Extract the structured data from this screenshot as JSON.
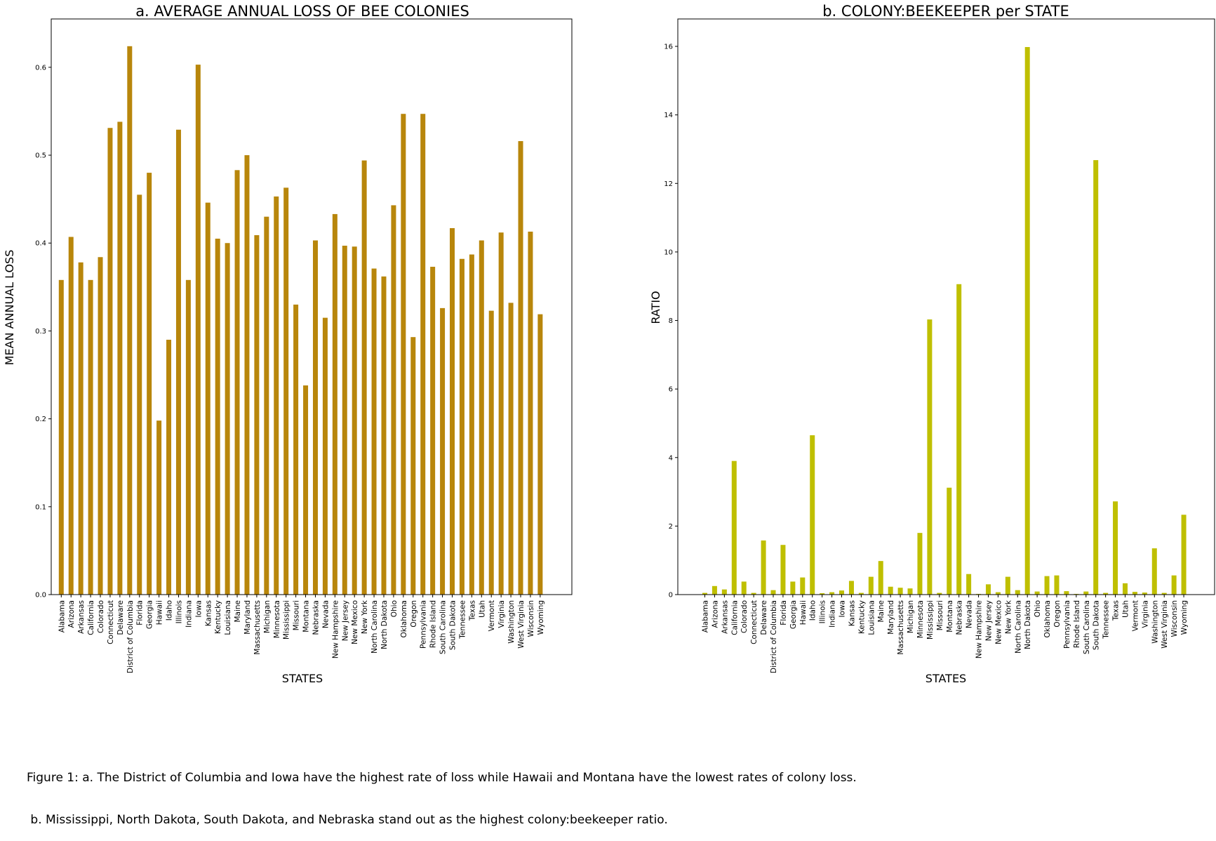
{
  "chart_data": [
    {
      "type": "bar",
      "title": "a. AVERAGE ANNUAL LOSS OF BEE COLONIES",
      "xlabel": "STATES",
      "ylabel": "MEAN ANNUAL LOSS",
      "ylim": [
        0,
        0.655
      ],
      "yticks": [
        0.0,
        0.1,
        0.2,
        0.3,
        0.4,
        0.5,
        0.6
      ],
      "ytick_labels": [
        "0.0",
        "0.1",
        "0.2",
        "0.3",
        "0.4",
        "0.5",
        "0.6"
      ],
      "color": "#b8860b",
      "categories": [
        "Alabama",
        "Arizona",
        "Arkansas",
        "California",
        "Colorado",
        "Connecticut",
        "Delaware",
        "District of Columbia",
        "Florida",
        "Georgia",
        "Hawaii",
        "Idaho",
        "Illinois",
        "Indiana",
        "Iowa",
        "Kansas",
        "Kentucky",
        "Louisiana",
        "Maine",
        "Maryland",
        "Massachusetts",
        "Michigan",
        "Minnesota",
        "Mississippi",
        "Missouri",
        "Montana",
        "Nebraska",
        "Nevada",
        "New Hampshire",
        "New Jersey",
        "New Mexico",
        "New York",
        "North Carolina",
        "North Dakota",
        "Ohio",
        "Oklahoma",
        "Oregon",
        "Pennsylvania",
        "Rhode Island",
        "South Carolina",
        "South Dakota",
        "Tennessee",
        "Texas",
        "Utah",
        "Vermont",
        "Virginia",
        "Washington",
        "West Virginia",
        "Wisconsin",
        "Wyoming"
      ],
      "values": [
        0.358,
        0.407,
        0.378,
        0.358,
        0.384,
        0.531,
        0.538,
        0.624,
        0.455,
        0.48,
        0.198,
        0.29,
        0.529,
        0.358,
        0.603,
        0.446,
        0.405,
        0.4,
        0.483,
        0.5,
        0.409,
        0.43,
        0.453,
        0.463,
        0.33,
        0.238,
        0.403,
        0.315,
        0.433,
        0.397,
        0.396,
        0.494,
        0.371,
        0.362,
        0.443,
        0.547,
        0.293,
        0.547,
        0.373,
        0.326,
        0.417,
        0.382,
        0.387,
        0.403,
        0.323,
        0.412,
        0.332,
        0.516,
        0.413,
        0.319
      ]
    },
    {
      "type": "bar",
      "title": "b. COLONY:BEEKEEPER per STATE",
      "xlabel": "STATES",
      "ylabel": "RATIO",
      "ylim": [
        0,
        16.8
      ],
      "yticks": [
        0,
        2,
        4,
        6,
        8,
        10,
        12,
        14,
        16
      ],
      "ytick_labels": [
        "0",
        "2",
        "4",
        "6",
        "8",
        "10",
        "12",
        "14",
        "16"
      ],
      "color": "#bfbf00",
      "categories": [
        "Alabama",
        "Arizona",
        "Arkansas",
        "California",
        "Colorado",
        "Connecticut",
        "Delaware",
        "District of Columbia",
        "Florida",
        "Georgia",
        "Hawaii",
        "Idaho",
        "Illinois",
        "Indiana",
        "Iowa",
        "Kansas",
        "Kentucky",
        "Louisiana",
        "Maine",
        "Maryland",
        "Massachusetts",
        "Michigan",
        "Minnesota",
        "Mississippi",
        "Missouri",
        "Montana",
        "Nebraska",
        "Nevada",
        "New Hampshire",
        "New Jersey",
        "New Mexico",
        "New York",
        "North Carolina",
        "North Dakota",
        "Ohio",
        "Oklahoma",
        "Oregon",
        "Pennsylvania",
        "Rhode Island",
        "South Carolina",
        "South Dakota",
        "Tennessee",
        "Texas",
        "Utah",
        "Vermont",
        "Virginia",
        "Washington",
        "West Virginia",
        "Wisconsin",
        "Wyoming"
      ],
      "values": [
        0.05,
        0.25,
        0.15,
        3.9,
        0.38,
        0.05,
        1.58,
        0.13,
        1.45,
        0.38,
        0.5,
        4.65,
        0.04,
        0.07,
        0.12,
        0.4,
        0.05,
        0.52,
        0.98,
        0.23,
        0.2,
        0.18,
        1.8,
        8.03,
        0.05,
        3.12,
        9.06,
        0.6,
        0.02,
        0.3,
        0.07,
        0.52,
        0.13,
        15.98,
        0.09,
        0.54,
        0.56,
        0.1,
        0.02,
        0.09,
        12.68,
        0.05,
        2.72,
        0.33,
        0.08,
        0.06,
        1.35,
        0.05,
        0.56,
        2.33
      ]
    }
  ],
  "caption": {
    "line1": "Figure 1: a. The District of Columbia and Iowa have the highest rate of loss while Hawaii and Montana have the lowest rates of colony loss.",
    "line2": " b. Mississippi, North Dakota, South Dakota, and Nebraska stand out as the highest colony:beekeeper ratio."
  }
}
